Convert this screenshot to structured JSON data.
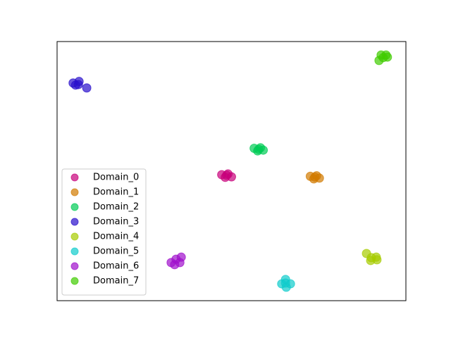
{
  "chart_data": {
    "type": "scatter",
    "xlim": [
      0,
      100
    ],
    "ylim": [
      0,
      100
    ],
    "legend": "lower left",
    "opacity": 0.7,
    "series": [
      {
        "name": "Domain_0",
        "color": "#c8007a",
        "x": [
          47.2,
          48.2,
          49.0,
          50.0,
          48.6
        ],
        "y": [
          48.6,
          47.6,
          48.9,
          47.8,
          48.4
        ]
      },
      {
        "name": "Domain_1",
        "color": "#d27a00",
        "x": [
          72.6,
          73.6,
          74.4,
          75.2,
          73.9
        ],
        "y": [
          48.0,
          47.0,
          48.2,
          47.3,
          47.7
        ]
      },
      {
        "name": "Domain_2",
        "color": "#00cc55",
        "x": [
          56.5,
          57.5,
          58.3,
          59.1,
          57.8
        ],
        "y": [
          58.8,
          57.8,
          59.0,
          58.1,
          58.4
        ]
      },
      {
        "name": "Domain_3",
        "color": "#2a10cc",
        "x": [
          4.6,
          5.3,
          6.3,
          6.1,
          8.5
        ],
        "y": [
          84.0,
          83.2,
          84.6,
          83.4,
          82.1
        ]
      },
      {
        "name": "Domain_4",
        "color": "#a6cc00",
        "x": [
          88.7,
          89.9,
          91.5,
          91.7,
          90.1
        ],
        "y": [
          18.2,
          15.5,
          16.8,
          15.8,
          16.6
        ]
      },
      {
        "name": "Domain_5",
        "color": "#10cccc",
        "x": [
          65.5,
          64.4,
          66.9,
          65.7,
          65.5
        ],
        "y": [
          8.2,
          6.5,
          6.5,
          5.2,
          6.8
        ]
      },
      {
        "name": "Domain_6",
        "color": "#a010cc",
        "x": [
          32.7,
          33.7,
          34.1,
          35.2,
          35.6
        ],
        "y": [
          14.7,
          13.9,
          16.0,
          14.7,
          16.8
        ]
      },
      {
        "name": "Domain_7",
        "color": "#40cc00",
        "x": [
          92.3,
          92.9,
          94.3,
          94.7,
          93.5
        ],
        "y": [
          92.7,
          94.8,
          94.8,
          94.0,
          93.8
        ]
      }
    ]
  }
}
